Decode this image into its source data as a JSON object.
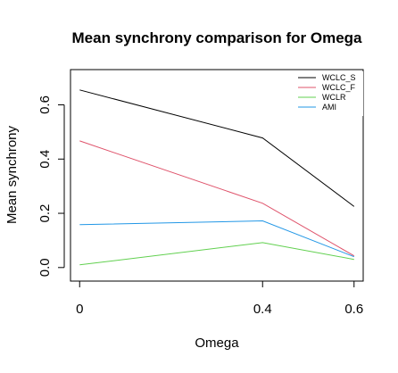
{
  "chart_data": {
    "type": "line",
    "title": "Mean synchrony comparison for Omega",
    "xlabel": "Omega",
    "ylabel": "Mean synchrony",
    "x": [
      0,
      0.4,
      0.6
    ],
    "x_tick_labels": [
      "0",
      "0.4",
      "0.6"
    ],
    "y_ticks": [
      0.0,
      0.2,
      0.4,
      0.6
    ],
    "y_tick_labels": [
      "0.0",
      "0.2",
      "0.4",
      "0.6"
    ],
    "xlim": [
      -0.02,
      0.62
    ],
    "ylim": [
      -0.05,
      0.73
    ],
    "grid": false,
    "legend_position": "top-right",
    "series": [
      {
        "name": "WCLC_S",
        "color": "#000000",
        "values": [
          0.655,
          0.478,
          0.225
        ]
      },
      {
        "name": "WCLC_F",
        "color": "#DF536B",
        "values": [
          0.467,
          0.237,
          0.043
        ]
      },
      {
        "name": "WCLR",
        "color": "#61D04F",
        "values": [
          0.01,
          0.092,
          0.03
        ]
      },
      {
        "name": "AMI",
        "color": "#2297E6",
        "values": [
          0.158,
          0.172,
          0.04
        ]
      }
    ]
  }
}
